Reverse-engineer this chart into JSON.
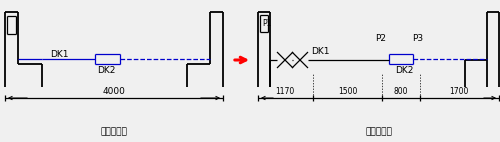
{
  "bg_color": "#f0f0f0",
  "line_color": "#000000",
  "blue_color": "#0000cc",
  "red_color": "#ff0000",
  "title_left": "增补尺寸前",
  "title_right": "增补尺寸后",
  "dim_left": "4000",
  "dims_right": [
    "1170",
    "1500",
    "800",
    "1700"
  ],
  "font_size": 6.5,
  "font_size_small": 5.5
}
